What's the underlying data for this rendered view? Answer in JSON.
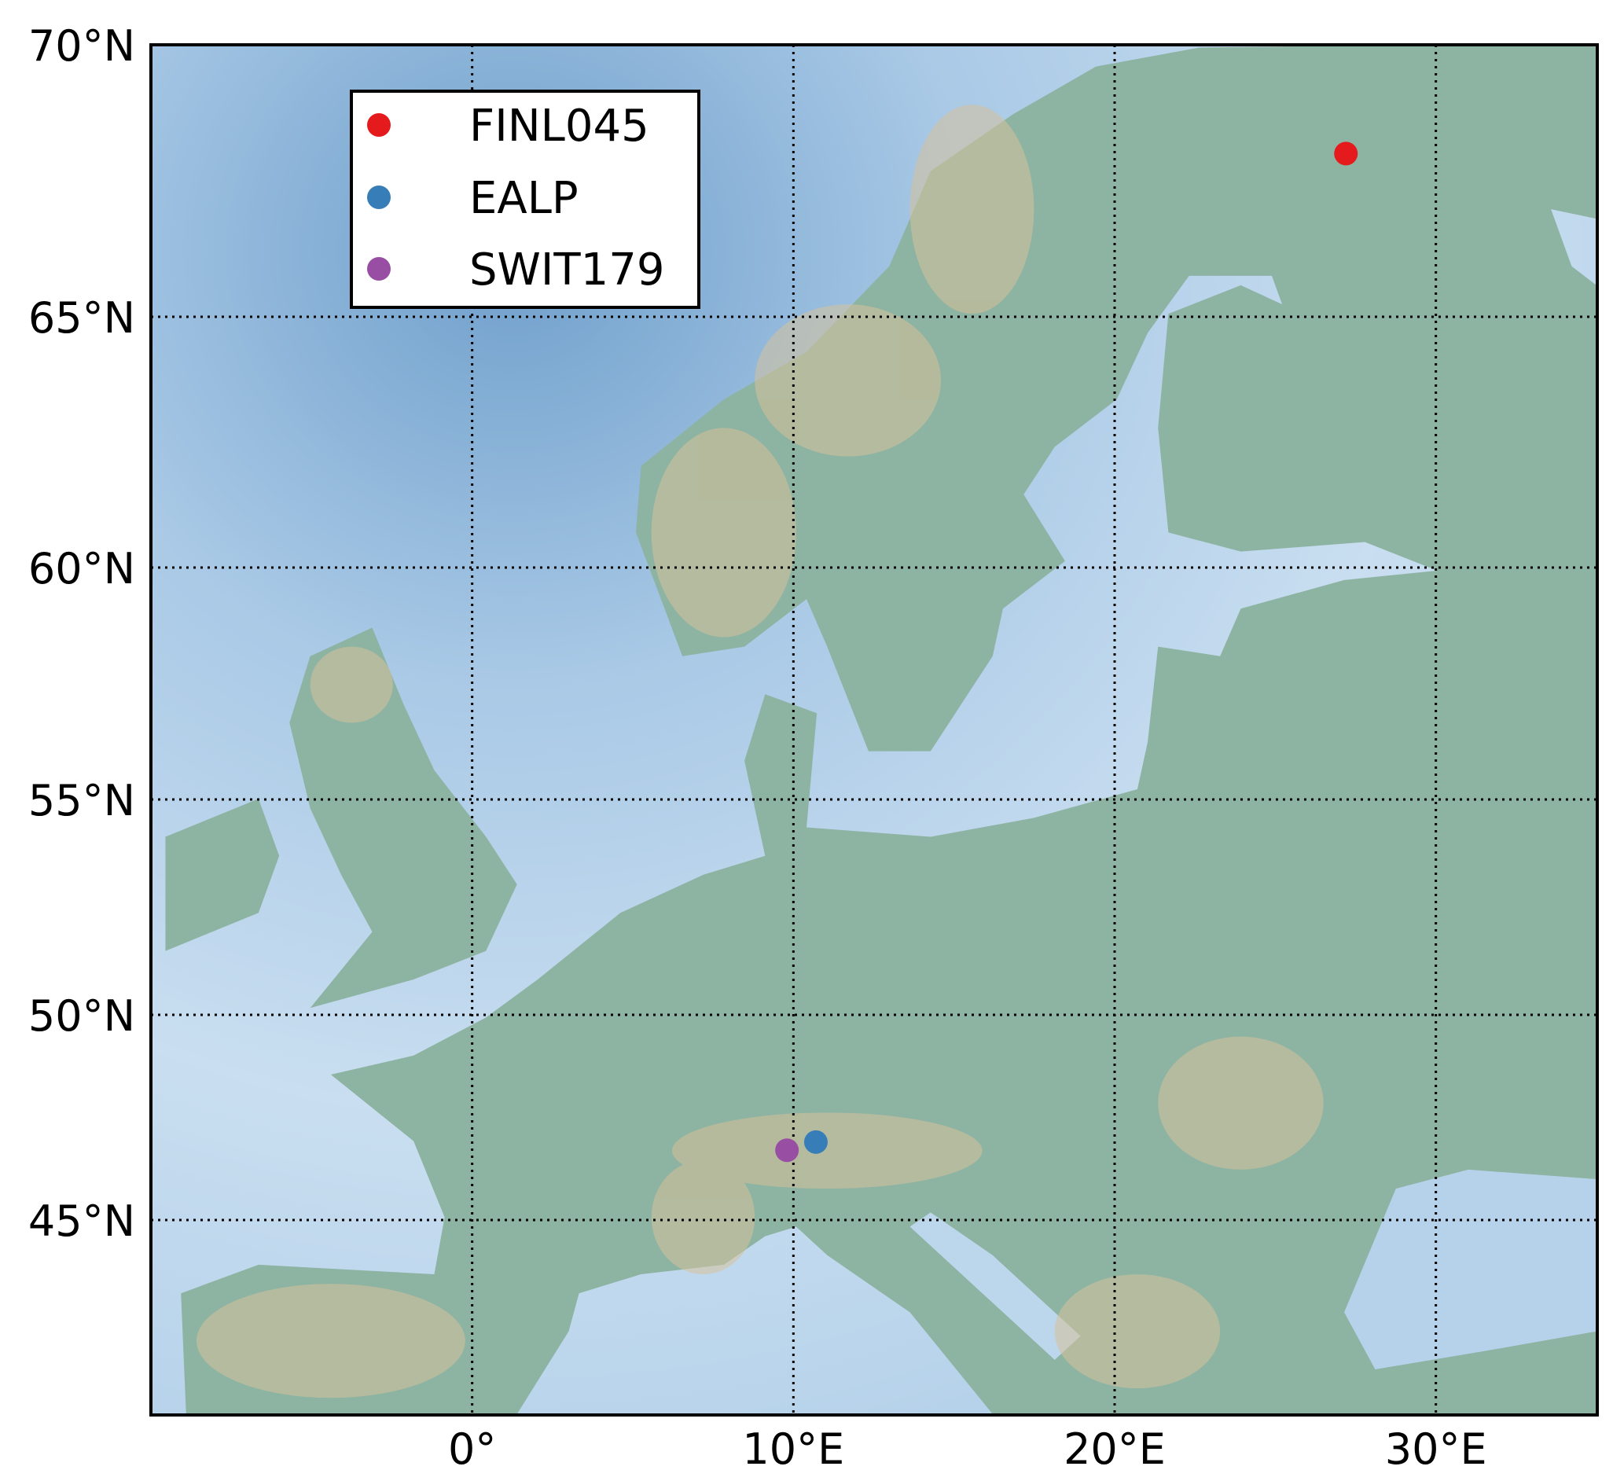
{
  "chart_data": {
    "type": "scatter",
    "map": "shaded-relief",
    "xlim": [
      -10,
      35
    ],
    "ylim": [
      40,
      70
    ],
    "grid": true,
    "grid_style": "dotted",
    "legend_position": "top-left",
    "x_ticks": [
      {
        "value": 0,
        "label": "0°"
      },
      {
        "value": 10,
        "label": "10°E"
      },
      {
        "value": 20,
        "label": "20°E"
      },
      {
        "value": 30,
        "label": "30°E"
      }
    ],
    "y_ticks": [
      {
        "value": 70,
        "label": "70°N"
      },
      {
        "value": 65,
        "label": "65°N"
      },
      {
        "value": 60,
        "label": "60°N"
      },
      {
        "value": 55,
        "label": "55°N"
      },
      {
        "value": 50,
        "label": "50°N"
      },
      {
        "value": 45,
        "label": "45°N"
      }
    ],
    "series": [
      {
        "name": "FINL045",
        "color": "#e41a1c",
        "lon": 27.2,
        "lat": 68.0
      },
      {
        "name": "EALP",
        "color": "#377eb8",
        "lon": 10.7,
        "lat": 46.9
      },
      {
        "name": "SWIT179",
        "color": "#984ea3",
        "lon": 9.8,
        "lat": 46.7
      }
    ]
  }
}
